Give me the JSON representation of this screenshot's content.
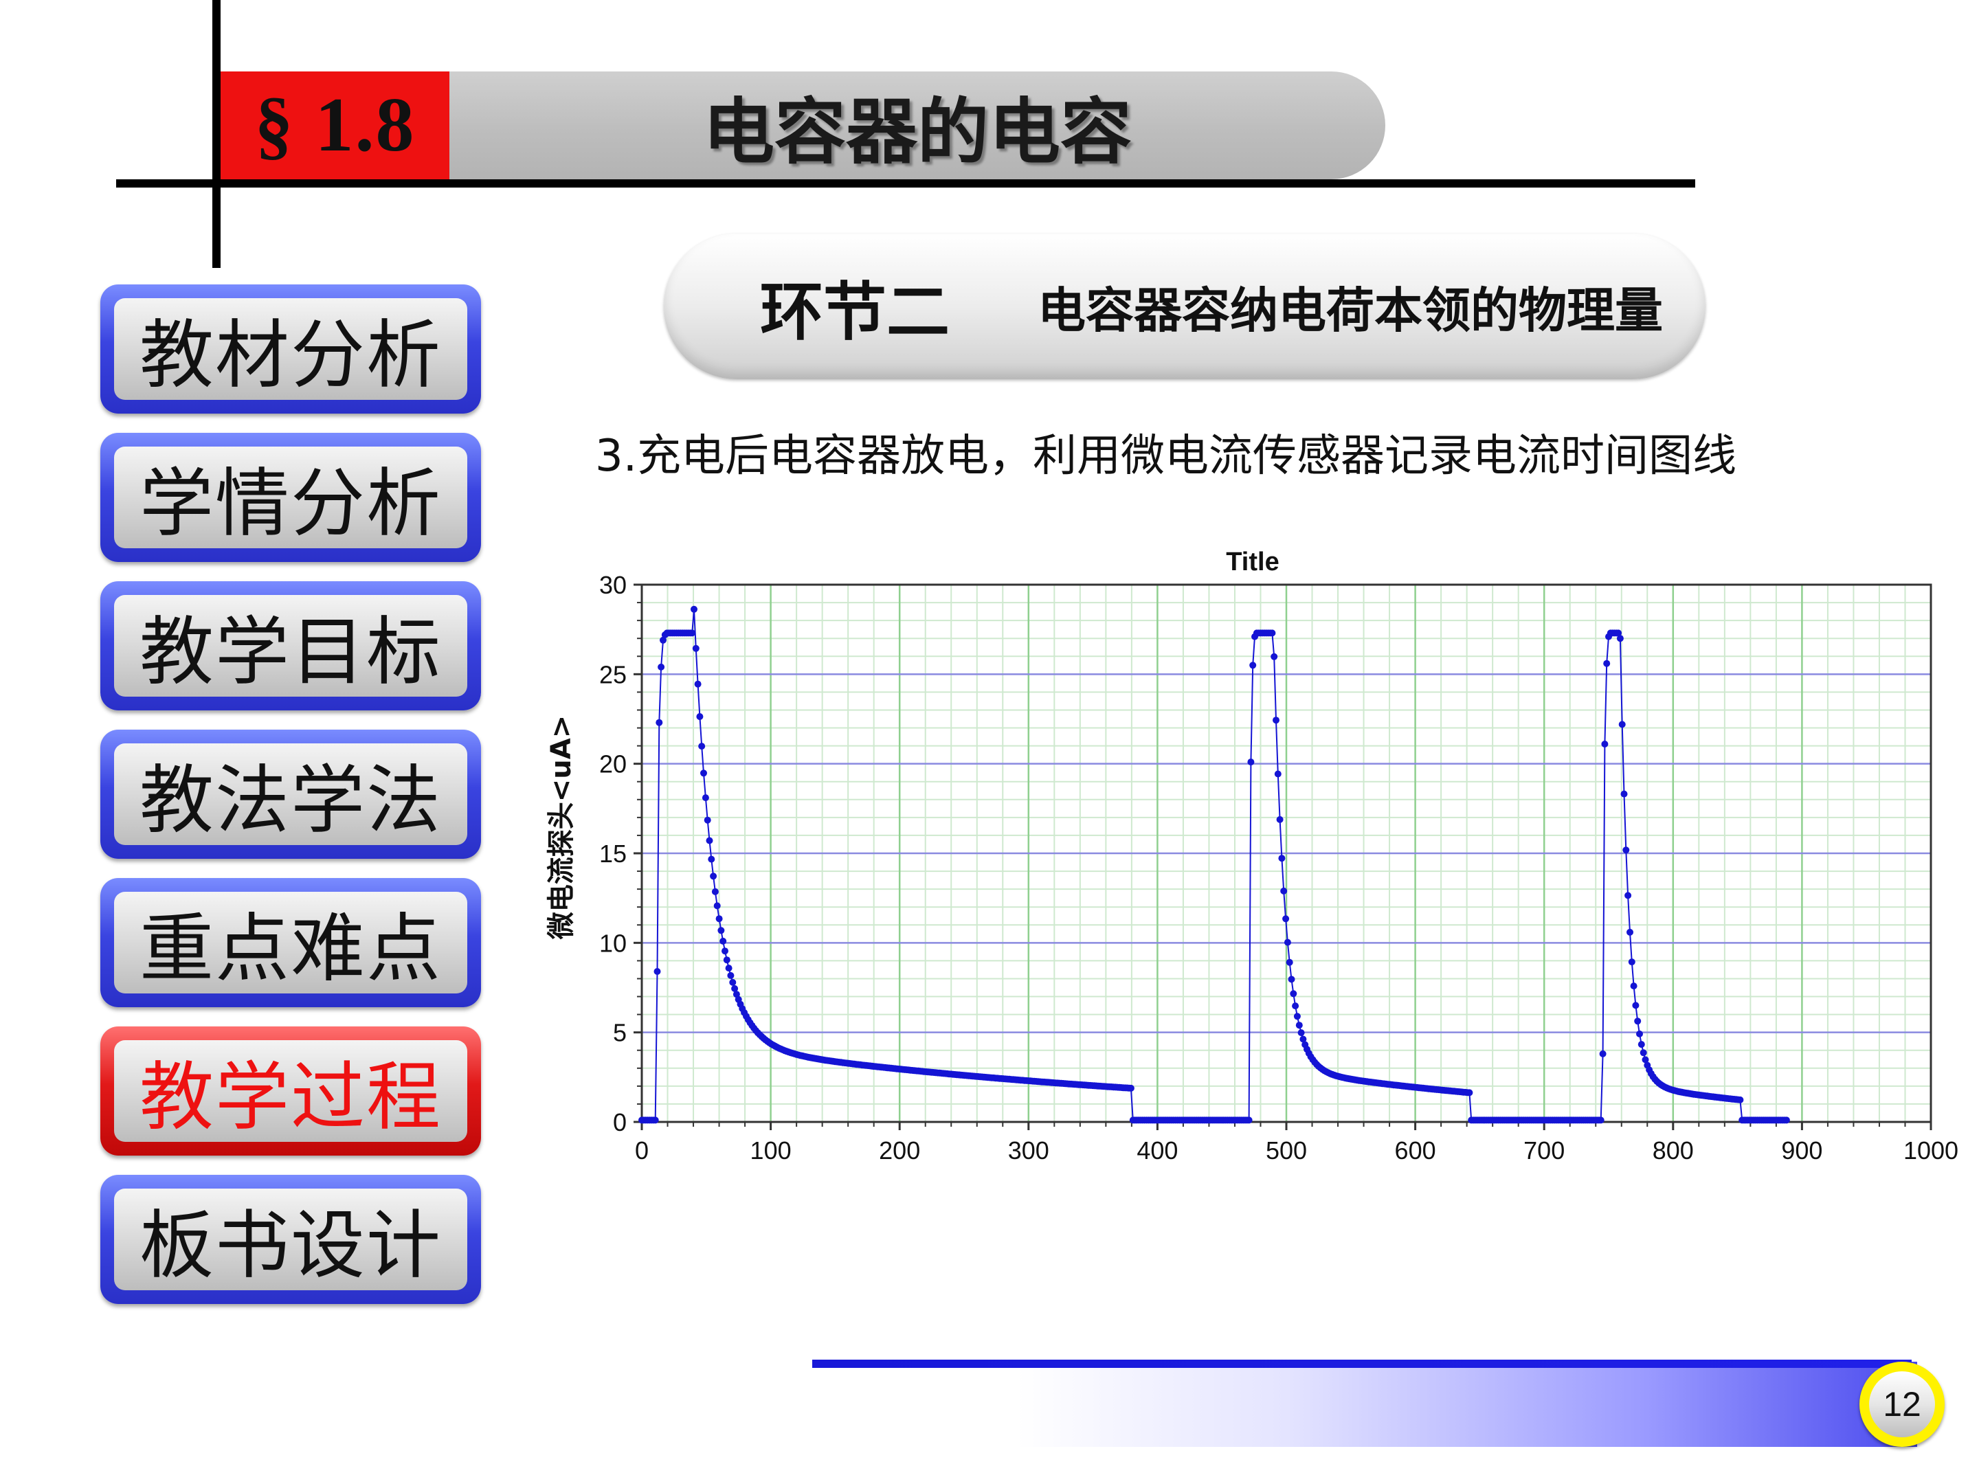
{
  "header": {
    "section_number": "§ 1.8",
    "title": "电容器的电容"
  },
  "sidebar": {
    "items": [
      {
        "label": "教材分析",
        "active": false
      },
      {
        "label": "学情分析",
        "active": false
      },
      {
        "label": "教学目标",
        "active": false
      },
      {
        "label": "教法学法",
        "active": false
      },
      {
        "label": "重点难点",
        "active": false
      },
      {
        "label": "教学过程",
        "active": true
      },
      {
        "label": "板书设计",
        "active": false
      }
    ]
  },
  "section": {
    "label": "环节二",
    "heading": "电容器容纳电荷本领的物理量"
  },
  "description": "3.充电后电容器放电，利用微电流传感器记录电流时间图线",
  "chart_data": {
    "type": "scatter",
    "title": "Title",
    "ylabel": "微电流探头<uA>",
    "xlabel": "",
    "xlim": [
      0,
      1000
    ],
    "ylim": [
      0,
      30
    ],
    "xticks": [
      "0",
      "100",
      "200",
      "300",
      "400",
      "500",
      "600",
      "700",
      "800",
      "900",
      "1000"
    ],
    "yticks": [
      "0",
      "5",
      "10",
      "15",
      "20",
      "25",
      "30"
    ],
    "grid": true,
    "marker_color": "#1414d4",
    "pulses": [
      {
        "on_time": 12,
        "rise": [
          8.4,
          22.3,
          25.4,
          26.9,
          27.2
        ],
        "plateau_value": 27.3,
        "plateau_end": 40,
        "decay_tau": 16,
        "decay_amp": 25,
        "tail_amp": 4.4,
        "tail_tau": 400,
        "end_time": 380
      },
      {
        "on_time": 472,
        "rise": [
          20.1,
          25.5,
          27.1
        ],
        "plateau_value": 27.3,
        "plateau_end": 490,
        "decay_tau": 9,
        "decay_amp": 24.3,
        "tail_amp": 3.0,
        "tail_tau": 250,
        "end_time": 643
      },
      {
        "on_time": 745,
        "rise": [
          3.8,
          21.1,
          25.6,
          27.1
        ],
        "plateau_value": 27.3,
        "plateau_end": 759,
        "decay_tau": 7,
        "decay_amp": 24.8,
        "tail_amp": 2.2,
        "tail_tau": 160,
        "end_time": 853
      }
    ],
    "baseline_end": 888,
    "sample_interval": 1.5
  },
  "footer": {
    "page_number": "12"
  },
  "colors": {
    "accent_red": "#ee1111",
    "accent_blue": "#2a30c8",
    "footer_blue": "#1818d8",
    "badge_yellow": "#fff200"
  }
}
